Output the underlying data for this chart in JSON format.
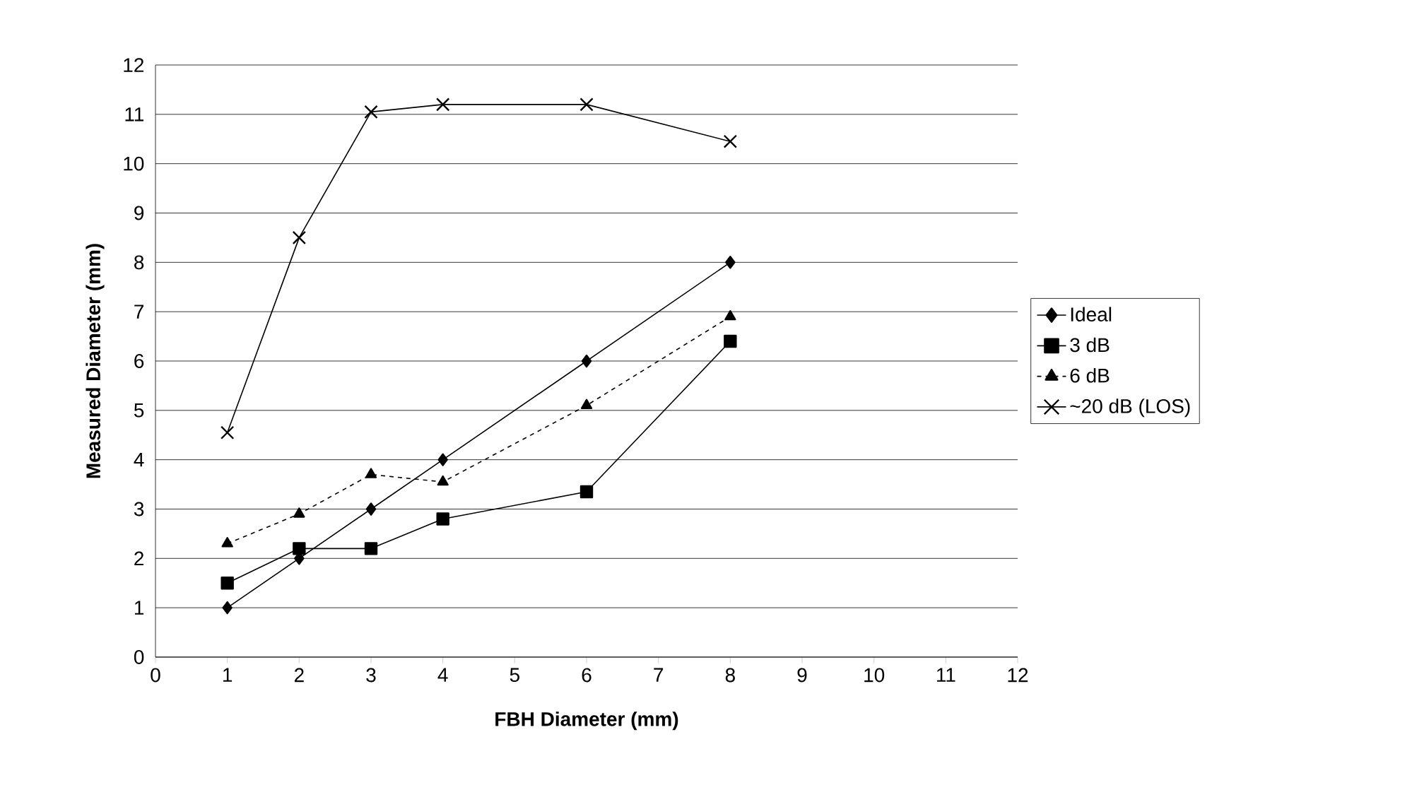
{
  "chart_data": {
    "type": "line",
    "xlabel": "FBH Diameter (mm)",
    "ylabel": "Measured Diameter (mm)",
    "x": [
      1,
      2,
      3,
      4,
      6,
      8
    ],
    "series": [
      {
        "name": "Ideal",
        "color": "#000000",
        "marker": "diamond",
        "line_style": "solid",
        "values": [
          1,
          2,
          3,
          4,
          6,
          8
        ]
      },
      {
        "name": "3 dB",
        "color": "#000000",
        "marker": "square",
        "line_style": "solid",
        "values": [
          1.5,
          2.2,
          2.2,
          2.8,
          3.35,
          6.4
        ]
      },
      {
        "name": "6 dB",
        "color": "#000000",
        "marker": "triangle",
        "line_style": "dashed",
        "values": [
          2.3,
          2.9,
          3.7,
          3.55,
          5.1,
          6.9
        ]
      },
      {
        "name": "~20 dB (LOS)",
        "color": "#000000",
        "marker": "cross",
        "line_style": "solid",
        "values": [
          4.55,
          8.5,
          11.05,
          11.2,
          11.2,
          10.45
        ]
      }
    ],
    "xlim": [
      0,
      12
    ],
    "ylim": [
      0,
      12
    ],
    "xticks": [
      0,
      1,
      2,
      3,
      4,
      5,
      6,
      7,
      8,
      9,
      10,
      11,
      12
    ],
    "yticks": [
      0,
      1,
      2,
      3,
      4,
      5,
      6,
      7,
      8,
      9,
      10,
      11,
      12
    ],
    "grid": "y",
    "legend": "right"
  }
}
